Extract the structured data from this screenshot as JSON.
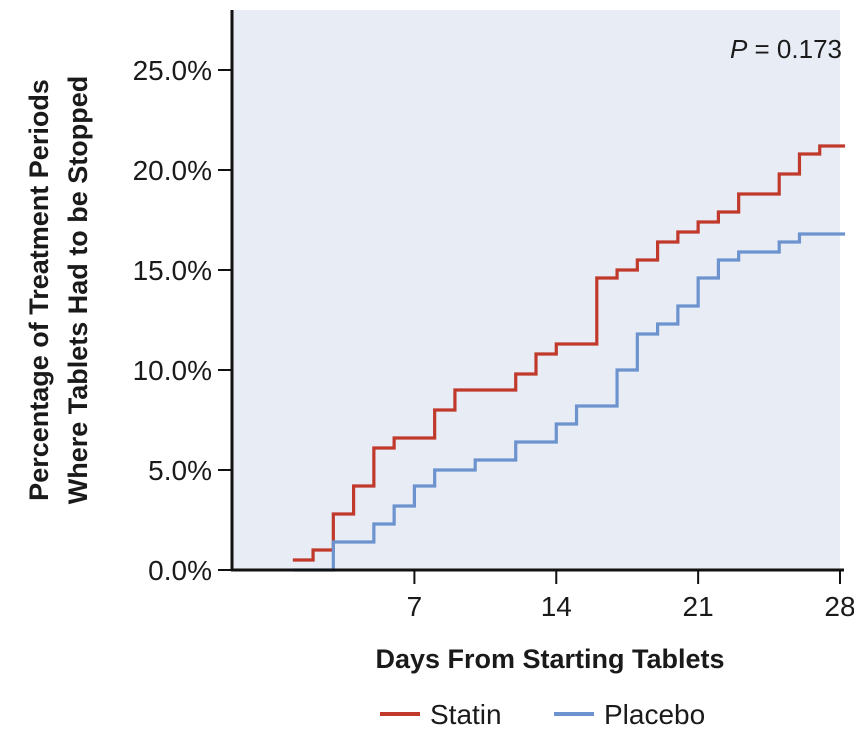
{
  "chart_data": {
    "type": "line",
    "step": true,
    "title": "",
    "xlabel": "Days From Starting Tablets",
    "ylabel_lines": [
      "Percentage of Treatment Periods",
      "Where Tablets Had to be Stopped"
    ],
    "annotation": {
      "italic": "P",
      "rest": " = 0.173"
    },
    "xlim": [
      -2,
      28
    ],
    "ylim": [
      0,
      28
    ],
    "xticks": [
      7,
      14,
      21,
      28
    ],
    "xtick_labels": [
      "7",
      "14",
      "21",
      "28"
    ],
    "yticks": [
      0,
      5,
      10,
      15,
      20,
      25
    ],
    "ytick_labels": [
      "0.0%",
      "5.0%",
      "10.0%",
      "15.0%",
      "20.0%",
      "25.0%"
    ],
    "grid": false,
    "plot_background": "#e8ecf5",
    "legend_position": "bottom-center",
    "series": [
      {
        "name": "Statin",
        "color": "#c0392b",
        "x": [
          1,
          2,
          3,
          4,
          5,
          6,
          7,
          8,
          9,
          10,
          11,
          12,
          13,
          14,
          15,
          16,
          17,
          18,
          19,
          20,
          21,
          22,
          23,
          24,
          25,
          26,
          27,
          28
        ],
        "y": [
          0.5,
          1.0,
          2.8,
          4.2,
          6.1,
          6.6,
          6.6,
          8.0,
          9.0,
          9.0,
          9.0,
          9.8,
          10.8,
          11.3,
          11.3,
          14.6,
          15.0,
          15.5,
          16.4,
          16.9,
          17.4,
          17.9,
          18.8,
          18.8,
          19.8,
          20.8,
          21.2,
          21.2
        ]
      },
      {
        "name": "Placebo",
        "color": "#6d93cf",
        "x": [
          1,
          2,
          3,
          4,
          5,
          6,
          7,
          8,
          9,
          10,
          11,
          12,
          13,
          14,
          15,
          16,
          17,
          18,
          19,
          20,
          21,
          22,
          23,
          24,
          25,
          26,
          27,
          28
        ],
        "y": [
          0.0,
          0.0,
          1.4,
          1.4,
          2.3,
          3.2,
          4.2,
          5.0,
          5.0,
          5.5,
          5.5,
          6.4,
          6.4,
          7.3,
          8.2,
          8.2,
          10.0,
          11.8,
          12.3,
          13.2,
          14.6,
          15.5,
          15.9,
          15.9,
          16.4,
          16.8,
          16.8,
          16.8
        ]
      }
    ]
  }
}
